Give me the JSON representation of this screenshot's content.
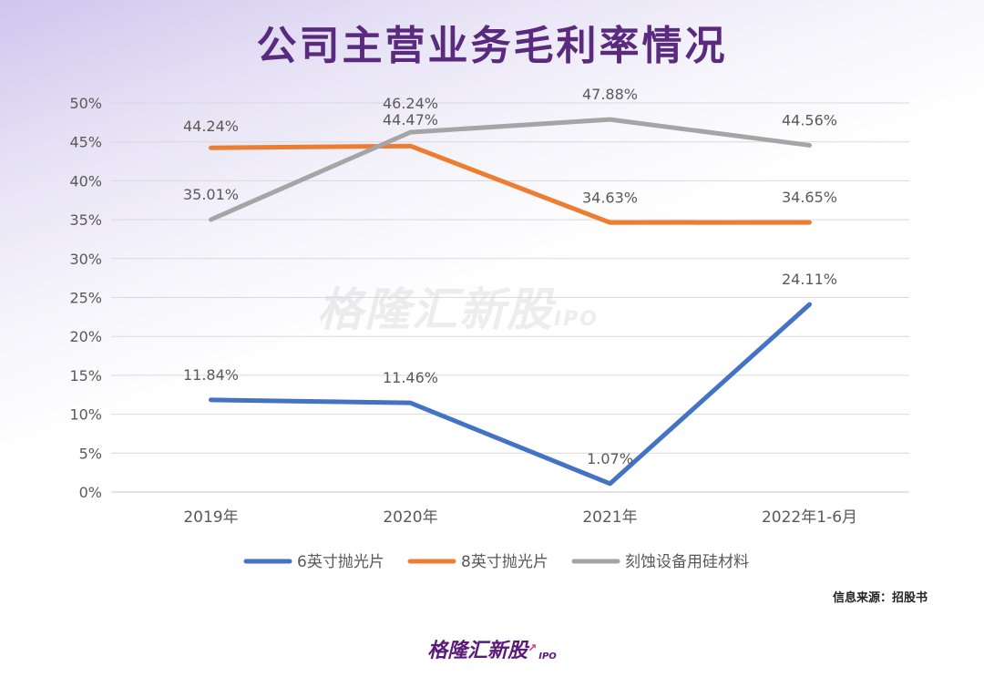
{
  "title": "公司主营业务毛利率情况",
  "source": "信息来源：招股书",
  "logo": {
    "text": "格隆汇新股",
    "sub": "IPO"
  },
  "watermark": {
    "text": "格隆汇新股",
    "sub": "IPO"
  },
  "chart_data": {
    "type": "line",
    "categories": [
      "2019年",
      "2020年",
      "2021年",
      "2022年1-6月"
    ],
    "y_ticks": [
      "0%",
      "5%",
      "10%",
      "15%",
      "20%",
      "25%",
      "30%",
      "35%",
      "40%",
      "45%",
      "50%"
    ],
    "ylim": [
      0,
      50
    ],
    "grid": true,
    "legend_position": "bottom",
    "series": [
      {
        "name": "6英寸抛光片",
        "color": "#4472c4",
        "values": [
          11.84,
          11.46,
          1.07,
          24.11
        ],
        "labels": [
          "11.84%",
          "11.46%",
          "1.07%",
          "24.11%"
        ]
      },
      {
        "name": "8英寸抛光片",
        "color": "#ed7d31",
        "values": [
          44.24,
          44.47,
          34.63,
          34.65
        ],
        "labels": [
          "44.24%",
          "44.47%",
          "34.63%",
          "34.65%"
        ]
      },
      {
        "name": "刻蚀设备用硅材料",
        "color": "#a5a5a5",
        "values": [
          35.01,
          46.24,
          47.88,
          44.56
        ],
        "labels": [
          "35.01%",
          "46.24%",
          "47.88%",
          "44.56%"
        ]
      }
    ]
  }
}
